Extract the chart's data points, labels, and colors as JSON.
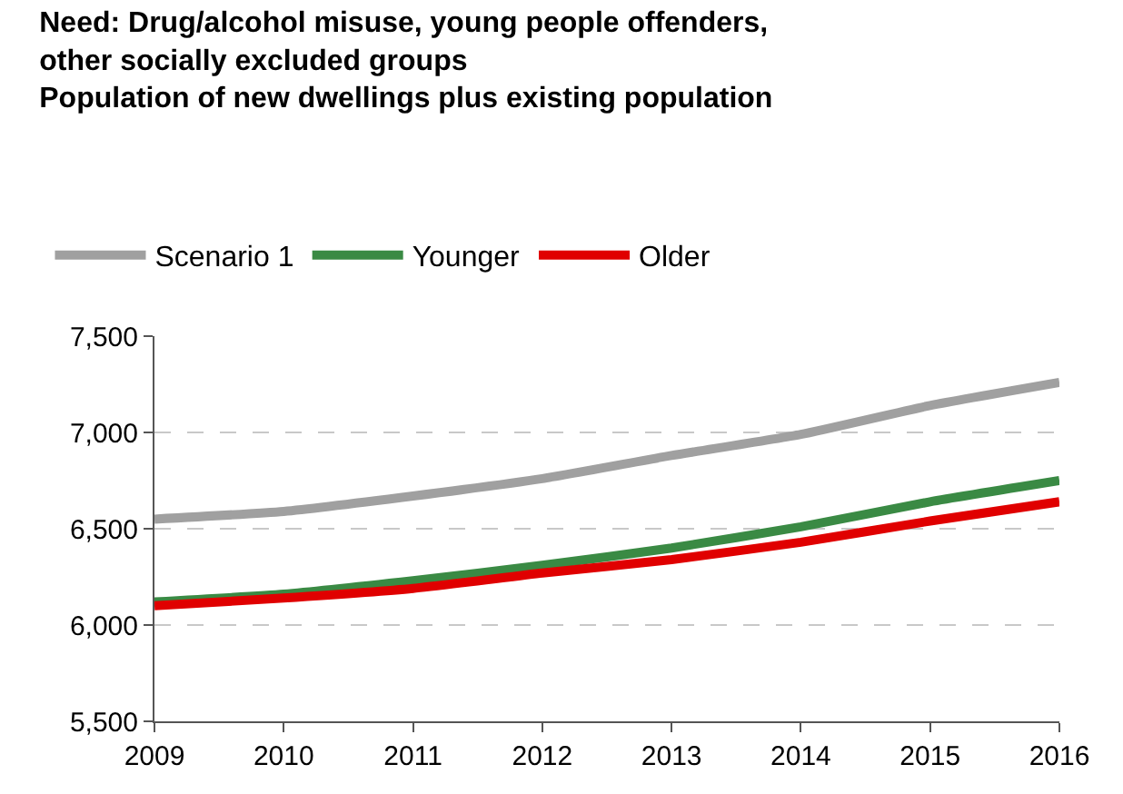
{
  "chart_data": {
    "type": "line",
    "title": "Need: Drug/alcohol misuse, young people offenders,\nother socially excluded groups\nPopulation of new dwellings plus existing population",
    "x": [
      2009,
      2010,
      2011,
      2012,
      2013,
      2014,
      2015,
      2016
    ],
    "series": [
      {
        "name": "Scenario 1",
        "color": "#a0a0a0",
        "values": [
          6550,
          6590,
          6670,
          6760,
          6880,
          6990,
          7140,
          7260
        ]
      },
      {
        "name": "Younger",
        "color": "#3a8a44",
        "values": [
          6120,
          6160,
          6230,
          6310,
          6400,
          6510,
          6640,
          6750
        ]
      },
      {
        "name": "Older",
        "color": "#e00000",
        "values": [
          6100,
          6140,
          6190,
          6270,
          6340,
          6430,
          6540,
          6640
        ]
      }
    ],
    "xlim": [
      2009,
      2016
    ],
    "xticks": [
      2009,
      2010,
      2011,
      2012,
      2013,
      2014,
      2015,
      2016
    ],
    "ylim": [
      5500,
      7500
    ],
    "yticks": [
      {
        "value": 5500,
        "label": "5,500"
      },
      {
        "value": 6000,
        "label": "6,000"
      },
      {
        "value": 6500,
        "label": "6,500"
      },
      {
        "value": 7000,
        "label": "7,000"
      },
      {
        "value": 7500,
        "label": "7,500"
      }
    ],
    "grid": "y",
    "legend": "top left",
    "marker": "none",
    "line_style": "solid"
  }
}
